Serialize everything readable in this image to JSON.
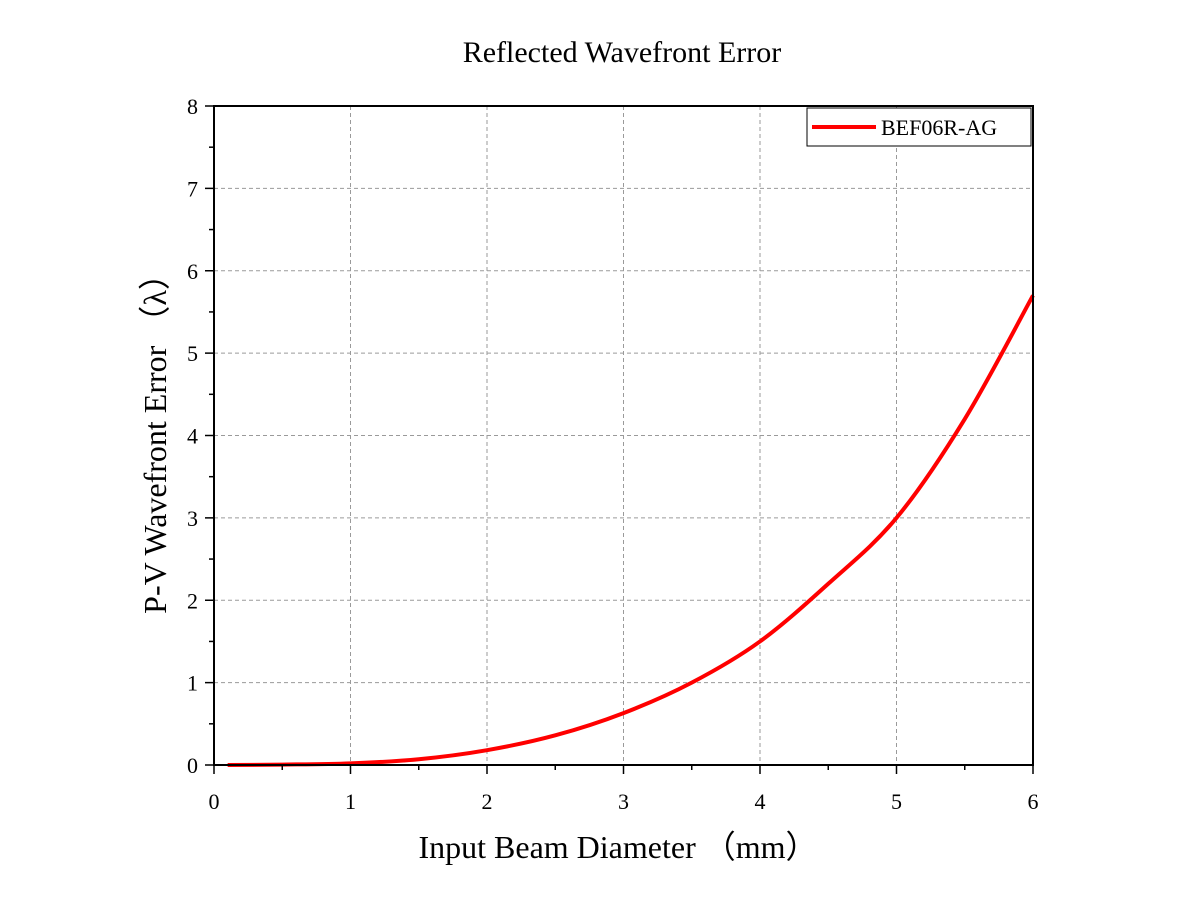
{
  "chart_data": {
    "type": "line",
    "title": "Reflected Wavefront Error",
    "xlabel": "Input Beam Diameter （mm）",
    "ylabel": "P-V Wavefront Error （λ）",
    "xlim": [
      0,
      6
    ],
    "ylim": [
      0,
      8
    ],
    "x_ticks": [
      "0",
      "1",
      "2",
      "3",
      "4",
      "5",
      "6"
    ],
    "y_ticks": [
      "0",
      "1",
      "2",
      "3",
      "4",
      "5",
      "6",
      "7",
      "8"
    ],
    "grid": true,
    "legend_position": "top-right",
    "series": [
      {
        "name": "BEF06R-AG",
        "color": "#ff0000",
        "x": [
          0.1,
          0.5,
          1.0,
          1.5,
          2.0,
          2.5,
          3.0,
          3.5,
          4.0,
          4.5,
          5.0,
          5.5,
          6.0
        ],
        "y": [
          0.0,
          0.005,
          0.02,
          0.07,
          0.18,
          0.36,
          0.63,
          1.0,
          1.5,
          2.2,
          3.0,
          4.2,
          5.7
        ]
      }
    ]
  }
}
